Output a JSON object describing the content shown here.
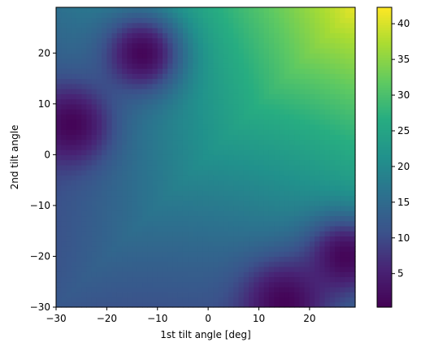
{
  "chart_data": {
    "type": "heatmap",
    "title": "",
    "xlabel": "1st tilt angle [deg]",
    "ylabel": "2nd tilt angle",
    "xlim": [
      -30,
      29
    ],
    "ylim": [
      -30,
      29
    ],
    "x_ticks": [
      -30,
      -20,
      -10,
      0,
      10,
      20
    ],
    "y_ticks": [
      -30,
      -20,
      -10,
      0,
      10,
      20
    ],
    "x_tick_labels": [
      "−30",
      "−20",
      "−10",
      "0",
      "10",
      "20"
    ],
    "y_tick_labels": [
      "−30",
      "−20",
      "−10",
      "0",
      "10",
      "20"
    ],
    "grid": false,
    "colormap": "viridis",
    "color_range": [
      0.3,
      42.3
    ],
    "colorbar_ticks": [
      5,
      10,
      15,
      20,
      25,
      30,
      35,
      40
    ],
    "colorbar_tick_labels": [
      "5",
      "10",
      "15",
      "20",
      "25",
      "30",
      "35",
      "40"
    ],
    "key_values": [
      {
        "x": -30,
        "y": -30,
        "value": 29
      },
      {
        "x": -18,
        "y": -28,
        "value": 33
      },
      {
        "x": 0,
        "y": 0,
        "value": 21
      },
      {
        "x": 28,
        "y": 28,
        "value": 42
      },
      {
        "x": -27,
        "y": 6,
        "value": 0.5
      },
      {
        "x": -13,
        "y": 20,
        "value": 1
      },
      {
        "x": 27,
        "y": -20,
        "value": 0.5
      },
      {
        "x": 15,
        "y": -29,
        "value": 2
      }
    ]
  }
}
